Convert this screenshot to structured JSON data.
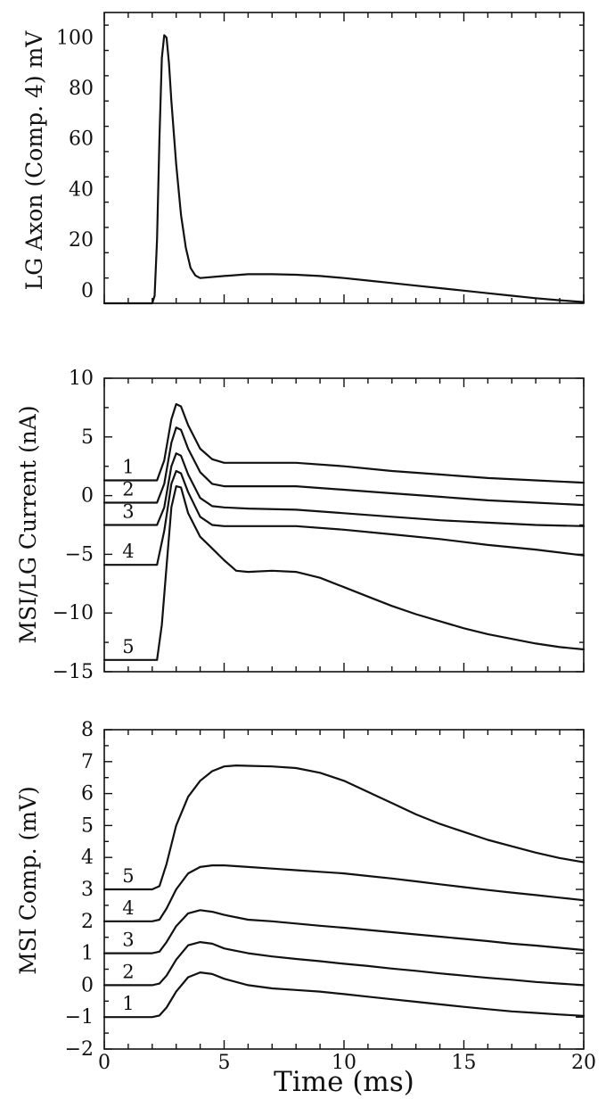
{
  "chart_data": [
    {
      "type": "line",
      "ylabel": "LG Axon (Comp. 4) mV",
      "xlim": [
        0,
        20
      ],
      "ylim": [
        -5,
        110
      ],
      "yticks": [
        0,
        20,
        40,
        60,
        80,
        100
      ],
      "series": [
        {
          "x": [
            0,
            1.8,
            2.0,
            2.1,
            2.2,
            2.3,
            2.4,
            2.5,
            2.6,
            2.7,
            2.8,
            3.0,
            3.2,
            3.4,
            3.6,
            3.8,
            4.0,
            5,
            6,
            7,
            8,
            9,
            10,
            11,
            12,
            13,
            14,
            15,
            16,
            17,
            18,
            19,
            20
          ],
          "y": [
            -5,
            -5,
            -5,
            -2,
            20,
            60,
            92,
            101,
            100,
            90,
            75,
            50,
            30,
            17,
            9,
            6,
            5,
            5.8,
            6.5,
            6.5,
            6.3,
            5.8,
            5,
            4,
            3,
            2,
            1,
            0,
            -1,
            -2,
            -3,
            -3.8,
            -4.5
          ]
        }
      ]
    },
    {
      "type": "line",
      "ylabel": "MSI/LG Current (nA)",
      "xlim": [
        0,
        20
      ],
      "ylim": [
        -15,
        10
      ],
      "yticks": [
        -15,
        -10,
        -5,
        0,
        5,
        10
      ],
      "ytick_labels": [
        "−15",
        "−10",
        "−5",
        "0",
        "5",
        "10"
      ],
      "series": [
        {
          "name": "1",
          "x": [
            0,
            2.2,
            2.5,
            2.8,
            3.0,
            3.2,
            3.5,
            4.0,
            4.5,
            5,
            6,
            8,
            10,
            12,
            14,
            16,
            18,
            20
          ],
          "y": [
            1.3,
            1.3,
            3,
            6.5,
            7.8,
            7.6,
            6,
            4,
            3.1,
            2.8,
            2.8,
            2.8,
            2.5,
            2.1,
            1.8,
            1.5,
            1.3,
            1.1
          ]
        },
        {
          "name": "2",
          "x": [
            0,
            2.2,
            2.5,
            2.8,
            3.0,
            3.2,
            3.5,
            4.0,
            4.5,
            5,
            6,
            8,
            10,
            12,
            14,
            16,
            18,
            20
          ],
          "y": [
            -0.6,
            -0.6,
            1,
            4.5,
            5.8,
            5.6,
            4,
            2,
            1,
            0.8,
            0.8,
            0.8,
            0.5,
            0.2,
            -0.1,
            -0.4,
            -0.6,
            -0.8
          ]
        },
        {
          "name": "3",
          "x": [
            0,
            2.2,
            2.5,
            2.8,
            3.0,
            3.2,
            3.5,
            4.0,
            4.5,
            5,
            6,
            8,
            10,
            12,
            14,
            16,
            18,
            20
          ],
          "y": [
            -2.5,
            -2.5,
            -1,
            2.5,
            3.6,
            3.4,
            1.8,
            -0.2,
            -0.9,
            -1,
            -1.1,
            -1.2,
            -1.5,
            -1.8,
            -2.1,
            -2.3,
            -2.5,
            -2.6
          ]
        },
        {
          "name": "4",
          "x": [
            0,
            2.2,
            2.5,
            2.8,
            3.0,
            3.2,
            3.5,
            4.0,
            4.5,
            5,
            6,
            8,
            10,
            12,
            14,
            16,
            18,
            20
          ],
          "y": [
            -5.9,
            -5.9,
            -3,
            1,
            2.1,
            1.9,
            0.3,
            -1.8,
            -2.5,
            -2.6,
            -2.6,
            -2.6,
            -2.9,
            -3.3,
            -3.7,
            -4.2,
            -4.6,
            -5.1
          ]
        },
        {
          "name": "5",
          "x": [
            0,
            2.2,
            2.4,
            2.6,
            2.8,
            3.0,
            3.2,
            3.5,
            4.0,
            4.5,
            5.0,
            5.5,
            6,
            7,
            8,
            9,
            10,
            11,
            12,
            13,
            14,
            15,
            16,
            17,
            18,
            19,
            20
          ],
          "y": [
            -14,
            -14,
            -11,
            -6,
            -1,
            0.8,
            0.7,
            -1.5,
            -3.5,
            -4.5,
            -5.5,
            -6.4,
            -6.5,
            -6.4,
            -6.5,
            -7,
            -7.8,
            -8.6,
            -9.4,
            -10.1,
            -10.7,
            -11.3,
            -11.8,
            -12.2,
            -12.6,
            -12.9,
            -13.1
          ]
        }
      ]
    },
    {
      "type": "line",
      "xlabel": "Time (ms)",
      "ylabel": "MSI Comp. (mV)",
      "xlim": [
        0,
        20
      ],
      "ylim": [
        -2,
        8
      ],
      "xticks": [
        0,
        5,
        10,
        15,
        20
      ],
      "yticks": [
        -2,
        -1,
        0,
        1,
        2,
        3,
        4,
        5,
        6,
        7,
        8
      ],
      "ytick_labels": [
        "−2",
        "−1",
        "0",
        "1",
        "2",
        "3",
        "4",
        "5",
        "6",
        "7",
        "8"
      ],
      "series": [
        {
          "name": "1",
          "x": [
            0,
            1.8,
            2.0,
            2.3,
            2.6,
            3.0,
            3.5,
            4.0,
            4.5,
            5,
            6,
            7,
            8,
            9,
            10,
            11,
            12,
            13,
            14,
            15,
            16,
            17,
            18,
            19,
            20
          ],
          "y": [
            -1,
            -1,
            -1,
            -0.95,
            -0.7,
            -0.2,
            0.25,
            0.4,
            0.35,
            0.2,
            0,
            -0.1,
            -0.15,
            -0.2,
            -0.28,
            -0.36,
            -0.44,
            -0.52,
            -0.6,
            -0.68,
            -0.75,
            -0.82,
            -0.87,
            -0.92,
            -0.96
          ]
        },
        {
          "name": "2",
          "x": [
            0,
            1.8,
            2.0,
            2.3,
            2.6,
            3.0,
            3.5,
            4.0,
            4.5,
            5,
            6,
            7,
            8,
            9,
            10,
            11,
            12,
            13,
            14,
            15,
            16,
            17,
            18,
            19,
            20
          ],
          "y": [
            0,
            0,
            0,
            0.05,
            0.3,
            0.8,
            1.25,
            1.35,
            1.3,
            1.15,
            1.0,
            0.9,
            0.82,
            0.75,
            0.67,
            0.6,
            0.52,
            0.45,
            0.37,
            0.3,
            0.23,
            0.17,
            0.1,
            0.05,
            0
          ]
        },
        {
          "name": "3",
          "x": [
            0,
            1.8,
            2.0,
            2.3,
            2.6,
            3.0,
            3.5,
            4.0,
            4.5,
            5,
            6,
            7,
            8,
            9,
            10,
            11,
            12,
            13,
            14,
            15,
            16,
            17,
            18,
            19,
            20
          ],
          "y": [
            1,
            1,
            1,
            1.05,
            1.35,
            1.85,
            2.25,
            2.35,
            2.3,
            2.2,
            2.05,
            2.0,
            1.93,
            1.86,
            1.8,
            1.73,
            1.66,
            1.59,
            1.52,
            1.45,
            1.38,
            1.3,
            1.24,
            1.17,
            1.1
          ]
        },
        {
          "name": "4",
          "x": [
            0,
            1.8,
            2.0,
            2.3,
            2.6,
            3.0,
            3.5,
            4.0,
            4.5,
            5,
            6,
            7,
            8,
            9,
            10,
            11,
            12,
            13,
            14,
            15,
            16,
            17,
            18,
            19,
            20
          ],
          "y": [
            2,
            2,
            2,
            2.05,
            2.4,
            3.0,
            3.5,
            3.7,
            3.75,
            3.75,
            3.7,
            3.65,
            3.6,
            3.55,
            3.5,
            3.42,
            3.34,
            3.25,
            3.16,
            3.07,
            2.98,
            2.9,
            2.82,
            2.74,
            2.66
          ]
        },
        {
          "name": "5",
          "x": [
            0,
            1.8,
            2.0,
            2.3,
            2.6,
            3.0,
            3.5,
            4.0,
            4.5,
            5,
            5.5,
            6,
            7,
            8,
            9,
            10,
            11,
            12,
            13,
            14,
            15,
            16,
            17,
            18,
            19,
            20
          ],
          "y": [
            3,
            3,
            3,
            3.1,
            3.8,
            5.0,
            5.9,
            6.4,
            6.7,
            6.85,
            6.88,
            6.87,
            6.85,
            6.8,
            6.65,
            6.4,
            6.05,
            5.7,
            5.35,
            5.05,
            4.8,
            4.55,
            4.35,
            4.15,
            3.98,
            3.85
          ]
        }
      ]
    }
  ]
}
